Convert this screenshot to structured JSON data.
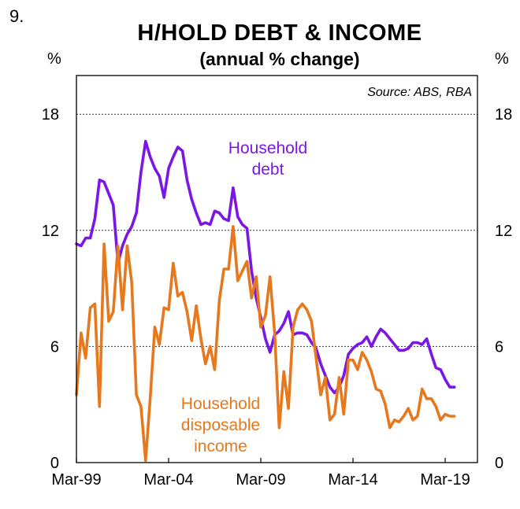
{
  "figure_number": "9.",
  "chart_data": {
    "type": "line",
    "title": "H/HOLD DEBT & INCOME",
    "subtitle": "(annual % change)",
    "ylabel_left": "%",
    "ylabel_right": "%",
    "source": "Source: ABS, RBA",
    "ylim": [
      0,
      20
    ],
    "xlim": [
      1999.0,
      2020.75
    ],
    "yticks": [
      0,
      6,
      12,
      18
    ],
    "xticks": [
      {
        "label": "Mar-99",
        "value": 1999.0
      },
      {
        "label": "Mar-04",
        "value": 2004.0
      },
      {
        "label": "Mar-09",
        "value": 2009.0
      },
      {
        "label": "Mar-14",
        "value": 2014.0
      },
      {
        "label": "Mar-19",
        "value": 2019.0
      }
    ],
    "grid": "horizontal dashed",
    "colors": {
      "debt": "#7a17e6",
      "income": "#e6781e"
    },
    "series": [
      {
        "name": "Household debt",
        "label_lines": [
          "Household",
          "debt"
        ],
        "points": [
          [
            1999.0,
            11.3
          ],
          [
            1999.25,
            11.2
          ],
          [
            1999.5,
            11.6
          ],
          [
            1999.75,
            11.6
          ],
          [
            2000.0,
            12.6
          ],
          [
            2000.25,
            14.6
          ],
          [
            2000.5,
            14.5
          ],
          [
            2000.75,
            13.9
          ],
          [
            2001.0,
            13.3
          ],
          [
            2001.25,
            10.3
          ],
          [
            2001.5,
            11.2
          ],
          [
            2001.75,
            11.8
          ],
          [
            2002.0,
            12.2
          ],
          [
            2002.25,
            12.9
          ],
          [
            2002.5,
            15.0
          ],
          [
            2002.75,
            16.6
          ],
          [
            2003.0,
            15.8
          ],
          [
            2003.25,
            15.2
          ],
          [
            2003.5,
            14.8
          ],
          [
            2003.75,
            13.7
          ],
          [
            2004.0,
            15.2
          ],
          [
            2004.25,
            15.8
          ],
          [
            2004.5,
            16.3
          ],
          [
            2004.75,
            16.1
          ],
          [
            2005.0,
            14.6
          ],
          [
            2005.25,
            13.6
          ],
          [
            2005.5,
            12.9
          ],
          [
            2005.75,
            12.3
          ],
          [
            2006.0,
            12.4
          ],
          [
            2006.25,
            12.3
          ],
          [
            2006.5,
            13.0
          ],
          [
            2006.75,
            12.9
          ],
          [
            2007.0,
            12.6
          ],
          [
            2007.25,
            12.5
          ],
          [
            2007.5,
            14.2
          ],
          [
            2007.75,
            12.7
          ],
          [
            2008.0,
            12.3
          ],
          [
            2008.25,
            12.1
          ],
          [
            2008.5,
            9.9
          ],
          [
            2008.75,
            8.5
          ],
          [
            2009.0,
            7.5
          ],
          [
            2009.25,
            6.4
          ],
          [
            2009.5,
            5.7
          ],
          [
            2009.75,
            6.6
          ],
          [
            2010.0,
            6.8
          ],
          [
            2010.25,
            7.2
          ],
          [
            2010.5,
            7.8
          ],
          [
            2010.75,
            6.6
          ],
          [
            2011.0,
            6.7
          ],
          [
            2011.25,
            6.7
          ],
          [
            2011.5,
            6.6
          ],
          [
            2011.75,
            6.2
          ],
          [
            2012.0,
            5.9
          ],
          [
            2012.25,
            5.1
          ],
          [
            2012.5,
            4.5
          ],
          [
            2012.75,
            3.9
          ],
          [
            2013.0,
            3.6
          ],
          [
            2013.25,
            3.9
          ],
          [
            2013.5,
            4.5
          ],
          [
            2013.75,
            5.6
          ],
          [
            2014.0,
            5.9
          ],
          [
            2014.25,
            6.1
          ],
          [
            2014.5,
            6.2
          ],
          [
            2014.75,
            6.5
          ],
          [
            2015.0,
            6.0
          ],
          [
            2015.25,
            6.5
          ],
          [
            2015.5,
            6.9
          ],
          [
            2015.75,
            6.7
          ],
          [
            2016.0,
            6.4
          ],
          [
            2016.25,
            6.1
          ],
          [
            2016.5,
            5.8
          ],
          [
            2016.75,
            5.8
          ],
          [
            2017.0,
            5.9
          ],
          [
            2017.25,
            6.2
          ],
          [
            2017.5,
            6.2
          ],
          [
            2017.75,
            6.1
          ],
          [
            2018.0,
            6.4
          ],
          [
            2018.25,
            5.6
          ],
          [
            2018.5,
            4.9
          ],
          [
            2018.75,
            4.8
          ],
          [
            2019.0,
            4.3
          ],
          [
            2019.25,
            3.9
          ],
          [
            2019.5,
            3.9
          ]
        ]
      },
      {
        "name": "Household disposable income",
        "label_lines": [
          "Household",
          "disposable",
          "income"
        ],
        "points": [
          [
            1999.0,
            3.5
          ],
          [
            1999.25,
            6.7
          ],
          [
            1999.5,
            5.4
          ],
          [
            1999.75,
            8.0
          ],
          [
            2000.0,
            8.2
          ],
          [
            2000.25,
            2.9
          ],
          [
            2000.5,
            11.3
          ],
          [
            2000.75,
            7.3
          ],
          [
            2001.0,
            7.8
          ],
          [
            2001.25,
            11.2
          ],
          [
            2001.5,
            7.9
          ],
          [
            2001.75,
            11.2
          ],
          [
            2002.0,
            9.3
          ],
          [
            2002.25,
            3.5
          ],
          [
            2002.5,
            2.9
          ],
          [
            2002.75,
            0.1
          ],
          [
            2003.0,
            3.3
          ],
          [
            2003.25,
            7.0
          ],
          [
            2003.5,
            6.1
          ],
          [
            2003.75,
            8.0
          ],
          [
            2004.0,
            7.9
          ],
          [
            2004.25,
            10.3
          ],
          [
            2004.5,
            8.6
          ],
          [
            2004.75,
            8.8
          ],
          [
            2005.0,
            7.8
          ],
          [
            2005.25,
            6.3
          ],
          [
            2005.5,
            8.1
          ],
          [
            2005.75,
            6.4
          ],
          [
            2006.0,
            5.1
          ],
          [
            2006.25,
            6.0
          ],
          [
            2006.5,
            4.8
          ],
          [
            2006.75,
            8.4
          ],
          [
            2007.0,
            10.0
          ],
          [
            2007.25,
            10.0
          ],
          [
            2007.5,
            12.2
          ],
          [
            2007.75,
            9.4
          ],
          [
            2008.0,
            9.9
          ],
          [
            2008.25,
            10.4
          ],
          [
            2008.5,
            8.5
          ],
          [
            2008.75,
            9.6
          ],
          [
            2009.0,
            7.0
          ],
          [
            2009.25,
            7.6
          ],
          [
            2009.5,
            9.6
          ],
          [
            2009.75,
            6.7
          ],
          [
            2010.0,
            1.8
          ],
          [
            2010.25,
            4.7
          ],
          [
            2010.5,
            2.8
          ],
          [
            2010.75,
            7.0
          ],
          [
            2011.0,
            7.9
          ],
          [
            2011.25,
            8.2
          ],
          [
            2011.5,
            7.9
          ],
          [
            2011.75,
            7.3
          ],
          [
            2012.0,
            5.4
          ],
          [
            2012.25,
            3.5
          ],
          [
            2012.5,
            4.4
          ],
          [
            2012.75,
            2.2
          ],
          [
            2013.0,
            2.5
          ],
          [
            2013.25,
            4.4
          ],
          [
            2013.5,
            2.5
          ],
          [
            2013.75,
            5.3
          ],
          [
            2014.0,
            5.3
          ],
          [
            2014.25,
            4.8
          ],
          [
            2014.5,
            5.7
          ],
          [
            2014.75,
            5.3
          ],
          [
            2015.0,
            4.7
          ],
          [
            2015.25,
            3.8
          ],
          [
            2015.5,
            3.7
          ],
          [
            2015.75,
            3.0
          ],
          [
            2016.0,
            1.8
          ],
          [
            2016.25,
            2.2
          ],
          [
            2016.5,
            2.1
          ],
          [
            2016.75,
            2.4
          ],
          [
            2017.0,
            2.8
          ],
          [
            2017.25,
            2.2
          ],
          [
            2017.5,
            2.4
          ],
          [
            2017.75,
            3.8
          ],
          [
            2018.0,
            3.3
          ],
          [
            2018.25,
            3.3
          ],
          [
            2018.5,
            2.9
          ],
          [
            2018.75,
            2.2
          ],
          [
            2019.0,
            2.5
          ],
          [
            2019.25,
            2.4
          ],
          [
            2019.5,
            2.4
          ]
        ]
      }
    ]
  }
}
